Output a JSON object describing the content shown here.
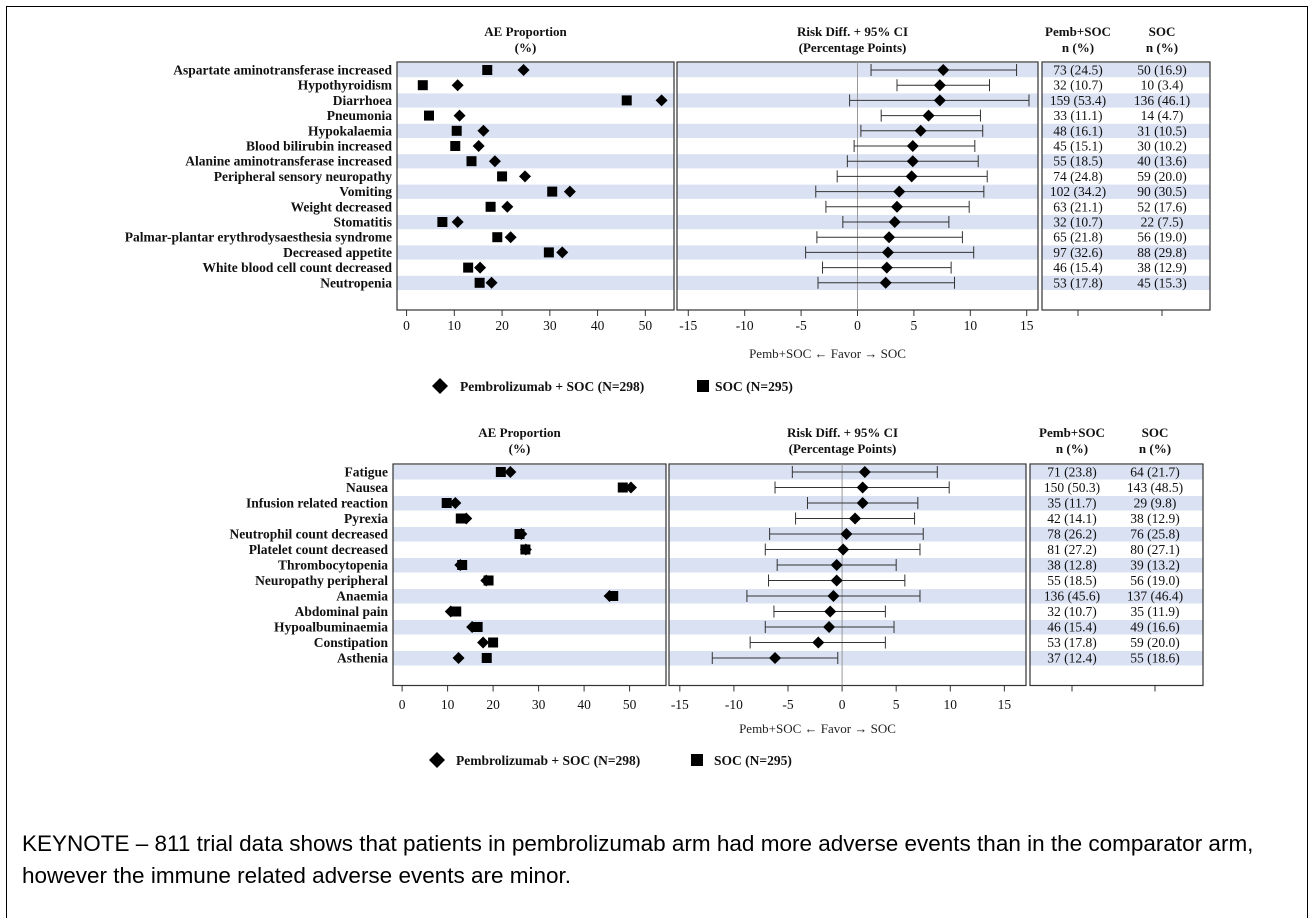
{
  "chart_data": [
    {
      "type": "forest-dot",
      "panel_titles": {
        "proportion": [
          "AE Proportion",
          "(%)"
        ],
        "risk": [
          "Risk Diff. + 95% CI",
          "(Percentage Points)"
        ],
        "table_col1": [
          "Pemb+SOC",
          "n (%)"
        ],
        "table_col2": [
          "SOC",
          "n (%)"
        ]
      },
      "proportion_axis": {
        "range": [
          -2,
          56
        ],
        "ticks": [
          0,
          10,
          20,
          30,
          40,
          50
        ]
      },
      "risk_axis": {
        "range": [
          -16,
          16
        ],
        "ticks": [
          -15,
          -10,
          -5,
          0,
          5,
          10,
          15
        ],
        "xlabel": "Pemb+SOC ← Favor → SOC"
      },
      "legend": {
        "pemb": "Pembrolizumab + SOC (N=298)",
        "soc": "SOC (N=295)"
      },
      "rows": [
        {
          "label": "Aspartate aminotransferase increased",
          "pemb": 24.5,
          "soc": 16.9,
          "diff": 7.6,
          "lo": 1.2,
          "hi": 14.1,
          "pemb_text": "73 (24.5)",
          "soc_text": "50 (16.9)"
        },
        {
          "label": "Hypothyroidism",
          "pemb": 10.7,
          "soc": 3.4,
          "diff": 7.3,
          "lo": 3.5,
          "hi": 11.7,
          "pemb_text": "32 (10.7)",
          "soc_text": "10 (3.4)"
        },
        {
          "label": "Diarrhoea",
          "pemb": 53.4,
          "soc": 46.1,
          "diff": 7.3,
          "lo": -0.7,
          "hi": 15.2,
          "pemb_text": "159 (53.4)",
          "soc_text": "136 (46.1)"
        },
        {
          "label": "Pneumonia",
          "pemb": 11.1,
          "soc": 4.7,
          "diff": 6.3,
          "lo": 2.1,
          "hi": 10.9,
          "pemb_text": "33 (11.1)",
          "soc_text": "14 (4.7)"
        },
        {
          "label": "Hypokalaemia",
          "pemb": 16.1,
          "soc": 10.5,
          "diff": 5.6,
          "lo": 0.3,
          "hi": 11.1,
          "pemb_text": "48 (16.1)",
          "soc_text": "31 (10.5)"
        },
        {
          "label": "Blood bilirubin increased",
          "pemb": 15.1,
          "soc": 10.2,
          "diff": 4.9,
          "lo": -0.3,
          "hi": 10.4,
          "pemb_text": "45 (15.1)",
          "soc_text": "30 (10.2)"
        },
        {
          "label": "Alanine aminotransferase increased",
          "pemb": 18.5,
          "soc": 13.6,
          "diff": 4.9,
          "lo": -0.9,
          "hi": 10.7,
          "pemb_text": "55 (18.5)",
          "soc_text": "40 (13.6)"
        },
        {
          "label": "Peripheral sensory neuropathy",
          "pemb": 24.8,
          "soc": 20.0,
          "diff": 4.8,
          "lo": -1.8,
          "hi": 11.5,
          "pemb_text": "74 (24.8)",
          "soc_text": "59 (20.0)"
        },
        {
          "label": "Vomiting",
          "pemb": 34.2,
          "soc": 30.5,
          "diff": 3.7,
          "lo": -3.7,
          "hi": 11.2,
          "pemb_text": "102 (34.2)",
          "soc_text": "90 (30.5)"
        },
        {
          "label": "Weight decreased",
          "pemb": 21.1,
          "soc": 17.6,
          "diff": 3.5,
          "lo": -2.8,
          "hi": 9.9,
          "pemb_text": "63 (21.1)",
          "soc_text": "52 (17.6)"
        },
        {
          "label": "Stomatitis",
          "pemb": 10.7,
          "soc": 7.5,
          "diff": 3.3,
          "lo": -1.3,
          "hi": 8.1,
          "pemb_text": "32 (10.7)",
          "soc_text": "22 (7.5)"
        },
        {
          "label": "Palmar-plantar erythrodysaesthesia syndrome",
          "pemb": 21.8,
          "soc": 19.0,
          "diff": 2.8,
          "lo": -3.6,
          "hi": 9.3,
          "pemb_text": "65 (21.8)",
          "soc_text": "56 (19.0)"
        },
        {
          "label": "Decreased appetite",
          "pemb": 32.6,
          "soc": 29.8,
          "diff": 2.7,
          "lo": -4.6,
          "hi": 10.3,
          "pemb_text": "97 (32.6)",
          "soc_text": "88 (29.8)"
        },
        {
          "label": "White blood cell count decreased",
          "pemb": 15.4,
          "soc": 12.9,
          "diff": 2.6,
          "lo": -3.1,
          "hi": 8.3,
          "pemb_text": "46 (15.4)",
          "soc_text": "38 (12.9)"
        },
        {
          "label": "Neutropenia",
          "pemb": 17.8,
          "soc": 15.3,
          "diff": 2.5,
          "lo": -3.5,
          "hi": 8.6,
          "pemb_text": "53 (17.8)",
          "soc_text": "45 (15.3)"
        }
      ]
    },
    {
      "type": "forest-dot",
      "panel_titles": {
        "proportion": [
          "AE Proportion",
          "(%)"
        ],
        "risk": [
          "Risk Diff. + 95% CI",
          "(Percentage Points)"
        ],
        "table_col1": [
          "Pemb+SOC",
          "n (%)"
        ],
        "table_col2": [
          "SOC",
          "n (%)"
        ]
      },
      "proportion_axis": {
        "range": [
          -2,
          58
        ],
        "ticks": [
          0,
          10,
          20,
          30,
          40,
          50
        ]
      },
      "risk_axis": {
        "range": [
          -16,
          17
        ],
        "ticks": [
          -15,
          -10,
          -5,
          0,
          5,
          10,
          15
        ],
        "xlabel": "Pemb+SOC ← Favor → SOC"
      },
      "legend": {
        "pemb": "Pembrolizumab + SOC (N=298)",
        "soc": "SOC (N=295)"
      },
      "rows": [
        {
          "label": "Fatigue",
          "pemb": 23.8,
          "soc": 21.7,
          "diff": 2.1,
          "lo": -4.6,
          "hi": 8.8,
          "pemb_text": "71 (23.8)",
          "soc_text": "64 (21.7)"
        },
        {
          "label": "Nausea",
          "pemb": 50.3,
          "soc": 48.5,
          "diff": 1.9,
          "lo": -6.2,
          "hi": 9.9,
          "pemb_text": "150 (50.3)",
          "soc_text": "143 (48.5)"
        },
        {
          "label": "Infusion related reaction",
          "pemb": 11.7,
          "soc": 9.8,
          "diff": 1.9,
          "lo": -3.2,
          "hi": 7.0,
          "pemb_text": "35 (11.7)",
          "soc_text": "29 (9.8)"
        },
        {
          "label": "Pyrexia",
          "pemb": 14.1,
          "soc": 12.9,
          "diff": 1.2,
          "lo": -4.3,
          "hi": 6.7,
          "pemb_text": "42 (14.1)",
          "soc_text": "38 (12.9)"
        },
        {
          "label": "Neutrophil count decreased",
          "pemb": 26.2,
          "soc": 25.8,
          "diff": 0.4,
          "lo": -6.7,
          "hi": 7.5,
          "pemb_text": "78 (26.2)",
          "soc_text": "76 (25.8)"
        },
        {
          "label": "Platelet count decreased",
          "pemb": 27.2,
          "soc": 27.1,
          "diff": 0.1,
          "lo": -7.1,
          "hi": 7.2,
          "pemb_text": "81 (27.2)",
          "soc_text": "80 (27.1)"
        },
        {
          "label": "Thrombocytopenia",
          "pemb": 12.8,
          "soc": 13.2,
          "diff": -0.5,
          "lo": -6.0,
          "hi": 5.0,
          "pemb_text": "38 (12.8)",
          "soc_text": "39 (13.2)"
        },
        {
          "label": "Neuropathy peripheral",
          "pemb": 18.5,
          "soc": 19.0,
          "diff": -0.5,
          "lo": -6.8,
          "hi": 5.8,
          "pemb_text": "55 (18.5)",
          "soc_text": "56 (19.0)"
        },
        {
          "label": "Anaemia",
          "pemb": 45.6,
          "soc": 46.4,
          "diff": -0.8,
          "lo": -8.8,
          "hi": 7.2,
          "pemb_text": "136 (45.6)",
          "soc_text": "137 (46.4)"
        },
        {
          "label": "Abdominal pain",
          "pemb": 10.7,
          "soc": 11.9,
          "diff": -1.1,
          "lo": -6.3,
          "hi": 4.0,
          "pemb_text": "32 (10.7)",
          "soc_text": "35 (11.9)"
        },
        {
          "label": "Hypoalbuminaemia",
          "pemb": 15.4,
          "soc": 16.6,
          "diff": -1.2,
          "lo": -7.1,
          "hi": 4.8,
          "pemb_text": "46 (15.4)",
          "soc_text": "49 (16.6)"
        },
        {
          "label": "Constipation",
          "pemb": 17.8,
          "soc": 20.0,
          "diff": -2.2,
          "lo": -8.5,
          "hi": 4.0,
          "pemb_text": "53 (17.8)",
          "soc_text": "59 (20.0)"
        },
        {
          "label": "Asthenia",
          "pemb": 12.4,
          "soc": 18.6,
          "diff": -6.2,
          "lo": -12.0,
          "hi": -0.4,
          "pemb_text": "37 (12.4)",
          "soc_text": "55 (18.6)"
        }
      ]
    }
  ],
  "caption": "KEYNOTE – 811 trial data shows that patients in pembrolizumab arm had more adverse events than in the comparator arm, however the immune related adverse events are minor."
}
